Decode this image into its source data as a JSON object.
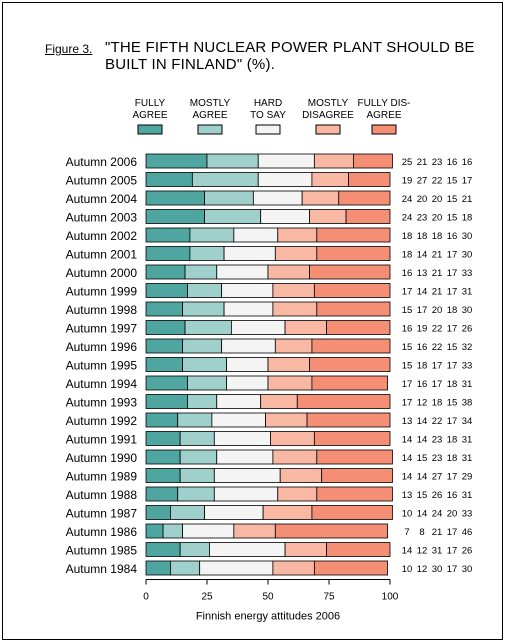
{
  "figure_label": "Figure 3.",
  "title": "\"THE FIFTH NUCLEAR POWER PLANT SHOULD BE BUILT IN FINLAND\" (%).",
  "footer": "Finnish energy attitudes 2006",
  "chart_data": {
    "type": "bar",
    "orientation": "horizontal",
    "stacked": true,
    "xlim": [
      0,
      100
    ],
    "xticks": [
      "0",
      "25",
      "50",
      "75",
      "100"
    ],
    "categories": [
      "Autumn 2006",
      "Autumn 2005",
      "Autumn 2004",
      "Autumn 2003",
      "Autumn 2002",
      "Autumn 2001",
      "Autumn 2000",
      "Autumn 1999",
      "Autumn 1998",
      "Autumn 1997",
      "Autumn 1996",
      "Autumn 1995",
      "Autumn 1994",
      "Autumn 1993",
      "Autumn 1992",
      "Autumn 1991",
      "Autumn 1990",
      "Autumn 1989",
      "Autumn 1988",
      "Autumn 1987",
      "Autumn 1986",
      "Autumn 1985",
      "Autumn 1984"
    ],
    "series": [
      {
        "name": "FULLY AGREE",
        "lines": [
          "FULLY",
          "AGREE"
        ],
        "color": "#4fa6a0",
        "values": [
          25,
          19,
          24,
          24,
          18,
          18,
          16,
          17,
          15,
          16,
          15,
          15,
          17,
          17,
          13,
          14,
          14,
          14,
          13,
          10,
          7,
          14,
          10
        ]
      },
      {
        "name": "MOSTLY AGREE",
        "lines": [
          "MOSTLY",
          "AGREE"
        ],
        "color": "#9fd0cc",
        "values": [
          21,
          27,
          20,
          23,
          18,
          14,
          13,
          14,
          17,
          19,
          16,
          18,
          16,
          12,
          14,
          14,
          15,
          14,
          15,
          14,
          8,
          12,
          12
        ]
      },
      {
        "name": "HARD TO SAY",
        "lines": [
          "HARD",
          "TO SAY"
        ],
        "color": "#f4f4f4",
        "values": [
          23,
          22,
          20,
          20,
          18,
          21,
          21,
          21,
          20,
          22,
          22,
          17,
          17,
          18,
          22,
          23,
          23,
          27,
          26,
          24,
          21,
          31,
          30
        ]
      },
      {
        "name": "MOSTLY DISAGREE",
        "lines": [
          "MOSTLY",
          "DISAGREE"
        ],
        "color": "#f9b8a4",
        "values": [
          16,
          15,
          15,
          15,
          16,
          17,
          17,
          17,
          18,
          17,
          15,
          17,
          18,
          15,
          17,
          18,
          18,
          17,
          16,
          20,
          17,
          17,
          17
        ]
      },
      {
        "name": "FULLY DISAGREE",
        "lines": [
          "FULLY DIS-",
          "AGREE"
        ],
        "color": "#f48f76",
        "values": [
          16,
          17,
          21,
          18,
          30,
          30,
          33,
          31,
          30,
          26,
          32,
          33,
          31,
          38,
          34,
          31,
          31,
          29,
          31,
          33,
          46,
          26,
          30
        ]
      }
    ]
  }
}
